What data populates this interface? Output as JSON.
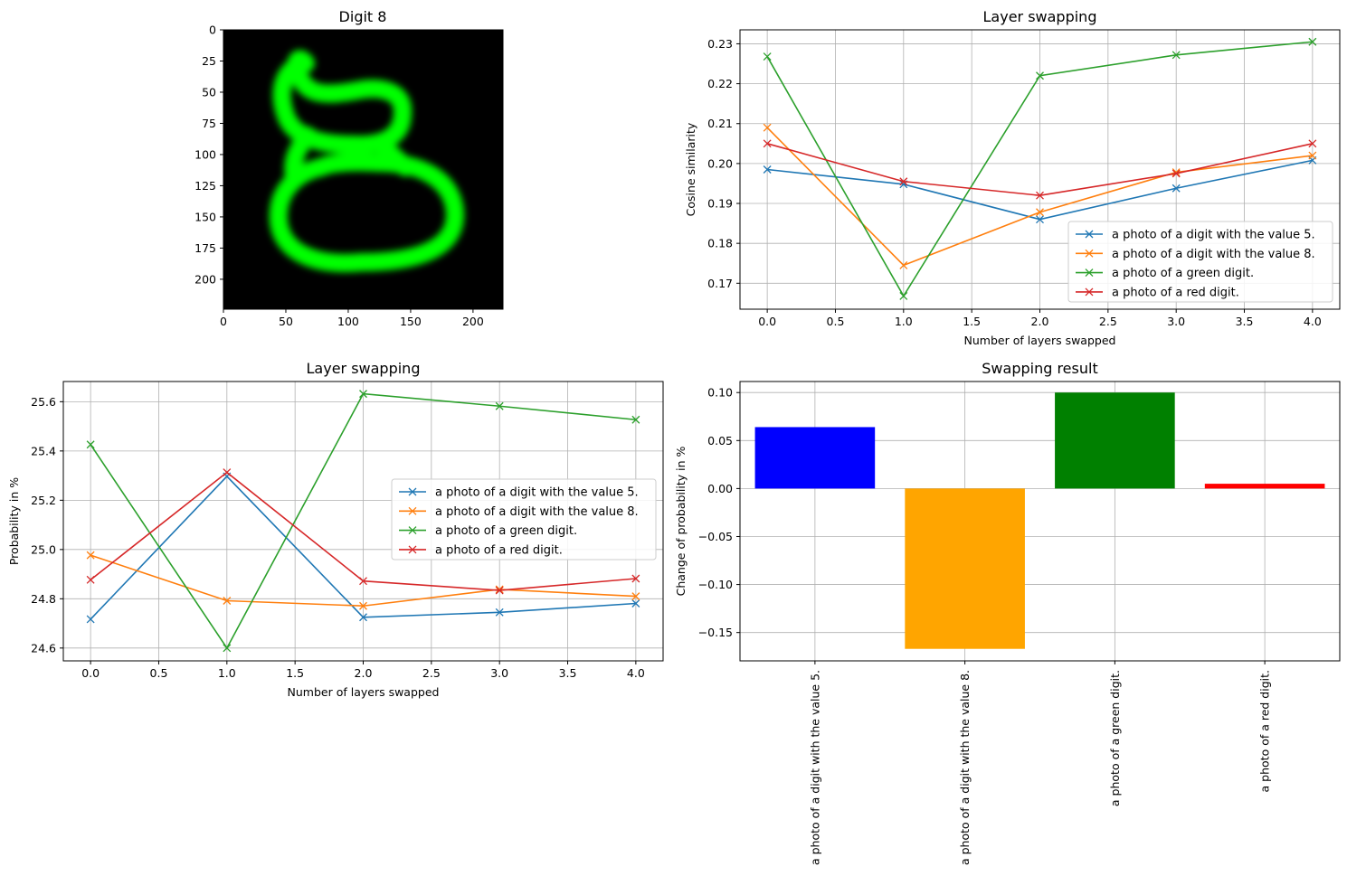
{
  "chart_data": [
    {
      "type": "image",
      "title": "Digit 8",
      "description_color": "#00ff00",
      "xlim": [
        0,
        224
      ],
      "ylim": [
        224,
        0
      ],
      "xticks": [
        0,
        50,
        100,
        150,
        200
      ],
      "yticks": [
        0,
        25,
        50,
        75,
        100,
        125,
        150,
        175,
        200
      ]
    },
    {
      "type": "line",
      "title": "Layer swapping",
      "xlabel": "Number of layers swapped",
      "ylabel": "Cosine similarity",
      "xlim": [
        -0.2,
        4.2
      ],
      "ylim": [
        0.1635,
        0.2335
      ],
      "xticks": [
        0.0,
        0.5,
        1.0,
        1.5,
        2.0,
        2.5,
        3.0,
        3.5,
        4.0
      ],
      "yticks": [
        0.17,
        0.18,
        0.19,
        0.2,
        0.21,
        0.22,
        0.23
      ],
      "grid": true,
      "legend_position": "lower right",
      "x": [
        0,
        1,
        2,
        3,
        4
      ],
      "series": [
        {
          "name": "a photo of a digit with the value 5.",
          "color": "#1f77b4",
          "values": [
            0.1985,
            0.1948,
            0.186,
            0.1938,
            0.2008
          ]
        },
        {
          "name": "a photo of a digit with the value 8.",
          "color": "#ff7f0e",
          "values": [
            0.209,
            0.1745,
            0.1878,
            0.1978,
            0.202
          ]
        },
        {
          "name": "a photo of a green digit.",
          "color": "#2ca02c",
          "values": [
            0.2268,
            0.1668,
            0.222,
            0.2272,
            0.2305
          ]
        },
        {
          "name": "a photo of a red digit.",
          "color": "#d62728",
          "values": [
            0.205,
            0.1955,
            0.192,
            0.1975,
            0.205
          ]
        }
      ]
    },
    {
      "type": "line",
      "title": "Layer swapping",
      "xlabel": "Number of layers swapped",
      "ylabel": "Probability in %",
      "xlim": [
        -0.2,
        4.2
      ],
      "ylim": [
        24.548,
        25.682
      ],
      "xticks": [
        0.0,
        0.5,
        1.0,
        1.5,
        2.0,
        2.5,
        3.0,
        3.5,
        4.0
      ],
      "yticks": [
        24.6,
        24.8,
        25.0,
        25.2,
        25.4,
        25.6
      ],
      "grid": true,
      "legend_position": "center right",
      "x": [
        0,
        1,
        2,
        3,
        4
      ],
      "series": [
        {
          "name": "a photo of a digit with the value 5.",
          "color": "#1f77b4",
          "values": [
            24.717,
            25.297,
            24.725,
            24.745,
            24.781
          ]
        },
        {
          "name": "a photo of a digit with the value 8.",
          "color": "#ff7f0e",
          "values": [
            24.977,
            24.792,
            24.771,
            24.838,
            24.81
          ]
        },
        {
          "name": "a photo of a green digit.",
          "color": "#2ca02c",
          "values": [
            25.426,
            24.6,
            25.632,
            25.582,
            25.527
          ]
        },
        {
          "name": "a photo of a red digit.",
          "color": "#d62728",
          "values": [
            24.877,
            25.313,
            24.872,
            24.834,
            24.882
          ]
        }
      ]
    },
    {
      "type": "bar",
      "title": "Swapping result",
      "xlabel": "",
      "ylabel": "Change of probability in %",
      "ylim": [
        -0.1795,
        0.1115
      ],
      "yticks": [
        0.1,
        0.05,
        0.0,
        -0.05,
        -0.1,
        -0.15
      ],
      "grid": true,
      "categories": [
        "a photo of a digit with the value 5.",
        "a photo of a digit with the value 8.",
        "a photo of a green digit.",
        "a photo of a red digit."
      ],
      "values": [
        0.064,
        -0.167,
        0.1,
        0.005
      ],
      "colors": [
        "#0000ff",
        "#ffa500",
        "#008000",
        "#ff0000"
      ]
    }
  ]
}
